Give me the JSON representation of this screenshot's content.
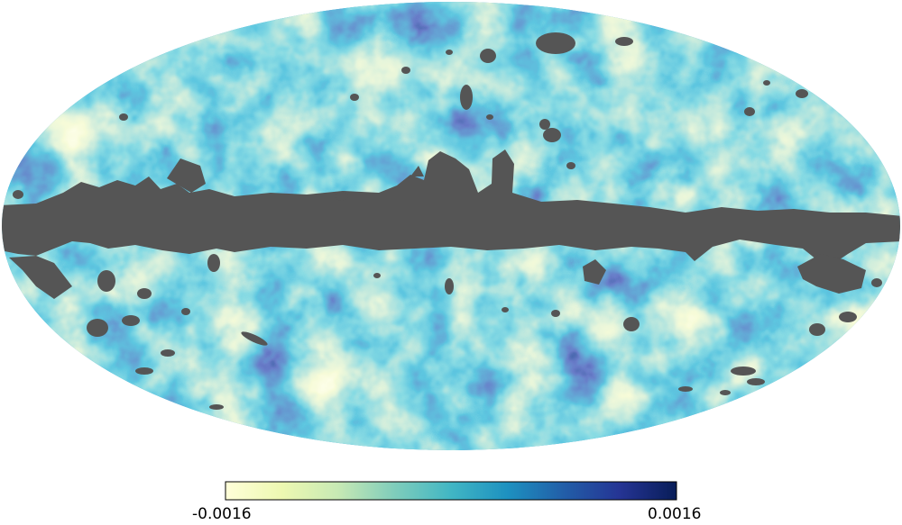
{
  "map": {
    "projection": "mollweide",
    "mask_color": "#555555",
    "colormap": [
      "#ffffd9",
      "#edf8b1",
      "#c7e9b4",
      "#7fcdbb",
      "#41b6c4",
      "#1d91c0",
      "#225ea8",
      "#253494",
      "#081d58"
    ]
  },
  "colorbar": {
    "min_label": "-0.0016",
    "max_label": "0.0016"
  }
}
